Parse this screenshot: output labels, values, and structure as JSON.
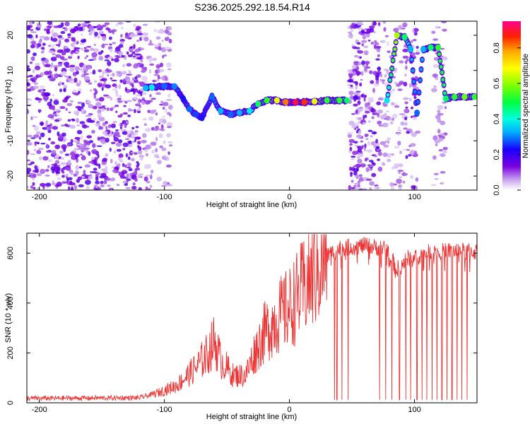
{
  "title": "S236.2025.292.18.54.R14",
  "chart_data": [
    {
      "type": "heatmap",
      "xlabel": "Height of straight line (km)",
      "ylabel": "Frequency (Hz)",
      "xlim": [
        -210,
        150
      ],
      "ylim": [
        -24,
        24
      ],
      "xticks": [
        -200,
        -100,
        0,
        100
      ],
      "yticks": [
        -20,
        -10,
        0,
        10,
        20
      ],
      "colorbar": {
        "label": "Normalized spectral amplitude",
        "ticks": [
          "0.0",
          "0.2",
          "0.4",
          "0.6",
          "0.8"
        ],
        "range": [
          0,
          0.95
        ]
      },
      "ridge": [
        {
          "x": -115,
          "y": 5.0,
          "a": 0.35
        },
        {
          "x": -110,
          "y": 5.2,
          "a": 0.4
        },
        {
          "x": -100,
          "y": 5.5,
          "a": 0.3
        },
        {
          "x": -92,
          "y": 5.5,
          "a": 0.32
        },
        {
          "x": -85,
          "y": 2.0,
          "a": 0.25
        },
        {
          "x": -80,
          "y": -1.0,
          "a": 0.3
        },
        {
          "x": -75,
          "y": -2.5,
          "a": 0.28
        },
        {
          "x": -70,
          "y": -3.5,
          "a": 0.25
        },
        {
          "x": -62,
          "y": 2.5,
          "a": 0.3
        },
        {
          "x": -55,
          "y": -1.5,
          "a": 0.35
        },
        {
          "x": -47,
          "y": -2.5,
          "a": 0.3
        },
        {
          "x": -40,
          "y": -2.0,
          "a": 0.35
        },
        {
          "x": -32,
          "y": -1.5,
          "a": 0.4
        },
        {
          "x": -25,
          "y": 0.5,
          "a": 0.5
        },
        {
          "x": -18,
          "y": 1.5,
          "a": 0.55
        },
        {
          "x": -10,
          "y": 1.5,
          "a": 0.7
        },
        {
          "x": -3,
          "y": 1.0,
          "a": 0.85
        },
        {
          "x": 5,
          "y": 1.0,
          "a": 0.95
        },
        {
          "x": 12,
          "y": 1.0,
          "a": 0.9
        },
        {
          "x": 20,
          "y": 1.2,
          "a": 0.7
        },
        {
          "x": 30,
          "y": 1.5,
          "a": 0.55
        },
        {
          "x": 40,
          "y": 1.5,
          "a": 0.55
        },
        {
          "x": 46,
          "y": 1.5,
          "a": 0.5
        },
        {
          "x": 78,
          "y": 1.5,
          "a": 0.4
        },
        {
          "x": 86,
          "y": 20.0,
          "a": 0.65
        },
        {
          "x": 92,
          "y": 19.5,
          "a": 0.5
        },
        {
          "x": 97,
          "y": 16.0,
          "a": 0.35
        },
        {
          "x": 102,
          "y": -2.0,
          "a": 0.3
        },
        {
          "x": 107,
          "y": 16.0,
          "a": 0.35
        },
        {
          "x": 113,
          "y": 16.5,
          "a": 0.5
        },
        {
          "x": 119,
          "y": 16.5,
          "a": 0.55
        },
        {
          "x": 125,
          "y": 2.0,
          "a": 0.5
        },
        {
          "x": 132,
          "y": 2.5,
          "a": 0.55
        },
        {
          "x": 140,
          "y": 2.5,
          "a": 0.6
        },
        {
          "x": 148,
          "y": 2.5,
          "a": 0.55
        }
      ]
    },
    {
      "type": "line",
      "xlabel": "Height of straight line (km)",
      "ylabel": "SNR (10 * v/v)",
      "xlim": [
        -210,
        150
      ],
      "ylim": [
        0,
        680
      ],
      "xticks": [
        -200,
        -100,
        0,
        100
      ],
      "yticks": [
        0,
        200,
        400,
        600
      ],
      "color": "#ee3333",
      "envelope": [
        {
          "x": -210,
          "y": 18
        },
        {
          "x": -120,
          "y": 20
        },
        {
          "x": -105,
          "y": 40
        },
        {
          "x": -90,
          "y": 70
        },
        {
          "x": -75,
          "y": 140
        },
        {
          "x": -65,
          "y": 200
        },
        {
          "x": -60,
          "y": 250
        },
        {
          "x": -55,
          "y": 170
        },
        {
          "x": -45,
          "y": 110
        },
        {
          "x": -35,
          "y": 110
        },
        {
          "x": -28,
          "y": 200
        },
        {
          "x": -20,
          "y": 280
        },
        {
          "x": -10,
          "y": 340
        },
        {
          "x": 0,
          "y": 380
        },
        {
          "x": 10,
          "y": 450
        },
        {
          "x": 20,
          "y": 520
        },
        {
          "x": 30,
          "y": 590
        },
        {
          "x": 40,
          "y": 620
        },
        {
          "x": 60,
          "y": 630
        },
        {
          "x": 80,
          "y": 615
        },
        {
          "x": 85,
          "y": 530
        },
        {
          "x": 95,
          "y": 580
        },
        {
          "x": 110,
          "y": 600
        },
        {
          "x": 130,
          "y": 610
        },
        {
          "x": 150,
          "y": 605
        }
      ],
      "dropouts": [
        36,
        38,
        42,
        47,
        72,
        77,
        82,
        88,
        93,
        97,
        102,
        106,
        110,
        114,
        118,
        122,
        126,
        130,
        134,
        138,
        142
      ]
    }
  ]
}
